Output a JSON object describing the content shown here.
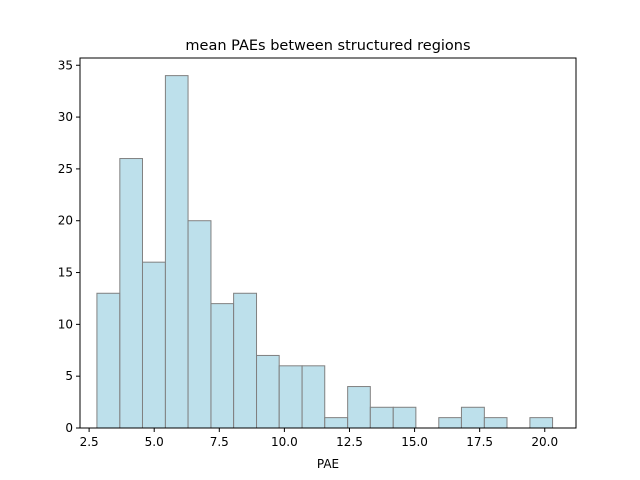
{
  "chart_data": {
    "type": "bar",
    "title": "mean PAEs between structured regions",
    "xlabel": "PAE",
    "ylabel": "",
    "xlim": [
      2.15,
      21.2
    ],
    "ylim": [
      0,
      35.7
    ],
    "xticks": [
      2.5,
      5.0,
      7.5,
      10.0,
      12.5,
      15.0,
      17.5,
      20.0
    ],
    "xtick_labels": [
      "2.5",
      "5.0",
      "7.5",
      "10.0",
      "12.5",
      "15.0",
      "17.5",
      "20.0"
    ],
    "yticks": [
      0,
      5,
      10,
      15,
      20,
      25,
      30,
      35
    ],
    "ytick_labels": [
      "0",
      "5",
      "10",
      "15",
      "20",
      "25",
      "30",
      "35"
    ],
    "bins": [
      {
        "x0": 2.8,
        "x1": 3.68,
        "count": 13
      },
      {
        "x0": 3.68,
        "x1": 4.55,
        "count": 26
      },
      {
        "x0": 4.55,
        "x1": 5.43,
        "count": 16
      },
      {
        "x0": 5.43,
        "x1": 6.3,
        "count": 34
      },
      {
        "x0": 6.3,
        "x1": 7.18,
        "count": 20
      },
      {
        "x0": 7.18,
        "x1": 8.05,
        "count": 12
      },
      {
        "x0": 8.05,
        "x1": 8.93,
        "count": 13
      },
      {
        "x0": 8.93,
        "x1": 9.8,
        "count": 7
      },
      {
        "x0": 9.8,
        "x1": 10.68,
        "count": 6
      },
      {
        "x0": 10.68,
        "x1": 11.55,
        "count": 6
      },
      {
        "x0": 11.55,
        "x1": 12.43,
        "count": 1
      },
      {
        "x0": 12.43,
        "x1": 13.3,
        "count": 4
      },
      {
        "x0": 13.3,
        "x1": 14.18,
        "count": 2
      },
      {
        "x0": 14.18,
        "x1": 15.05,
        "count": 2
      },
      {
        "x0": 15.05,
        "x1": 15.93,
        "count": 0
      },
      {
        "x0": 15.93,
        "x1": 16.8,
        "count": 1
      },
      {
        "x0": 16.8,
        "x1": 17.68,
        "count": 2
      },
      {
        "x0": 17.68,
        "x1": 18.55,
        "count": 1
      },
      {
        "x0": 18.55,
        "x1": 19.43,
        "count": 0
      },
      {
        "x0": 19.43,
        "x1": 20.3,
        "count": 1
      }
    ],
    "bar_fill": "#add8e6",
    "bar_edge": "#808080",
    "grid": false,
    "legend": "none"
  }
}
